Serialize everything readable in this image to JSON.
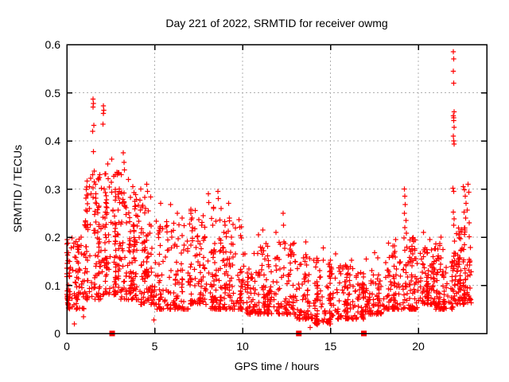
{
  "title": "Day 221 of 2022, SRMTID for receiver owmg",
  "chart_data": {
    "type": "scatter",
    "title": "Day 221 of 2022, SRMTID for receiver owmg",
    "xlabel": "GPS time / hours",
    "ylabel": "SRMTID / TECUs",
    "xlim": [
      0,
      23.9
    ],
    "ylim": [
      0,
      0.6
    ],
    "xticks": [
      0,
      5,
      10,
      15,
      20
    ],
    "xtick_labels": [
      "0",
      "5",
      "10",
      "15",
      "20"
    ],
    "yticks": [
      0,
      0.1,
      0.2,
      0.3,
      0.4,
      0.5,
      0.6
    ],
    "ytick_labels": [
      "0",
      "0.1",
      "0.2",
      "0.3",
      "0.4",
      "0.5",
      "0.6"
    ],
    "grid": true,
    "legend": "none",
    "marker_color": "#ff0000",
    "grid_color": "#b0b0b0",
    "border_color": "#000000",
    "series": [
      {
        "name": "srmtid-plus-markers",
        "marker": "plus",
        "density_bands": [
          [
            0,
            1,
            95,
            0.05,
            0.2,
            1.8
          ],
          [
            1,
            2,
            110,
            0.07,
            0.34,
            1.5
          ],
          [
            2,
            3,
            125,
            0.08,
            0.34,
            1.5
          ],
          [
            3,
            4,
            115,
            0.07,
            0.3,
            1.6
          ],
          [
            4,
            5,
            95,
            0.06,
            0.29,
            1.8
          ],
          [
            5,
            6,
            70,
            0.05,
            0.24,
            2.0
          ],
          [
            6,
            7,
            70,
            0.05,
            0.23,
            2.0
          ],
          [
            7,
            8,
            85,
            0.06,
            0.26,
            2.0
          ],
          [
            8,
            9,
            90,
            0.05,
            0.27,
            2.0
          ],
          [
            9,
            10,
            80,
            0.05,
            0.24,
            2.1
          ],
          [
            10,
            11,
            70,
            0.04,
            0.17,
            2.0
          ],
          [
            11,
            12,
            80,
            0.04,
            0.19,
            2.0
          ],
          [
            12,
            13,
            72,
            0.04,
            0.19,
            2.1
          ],
          [
            13,
            14,
            70,
            0.03,
            0.17,
            2.1
          ],
          [
            14,
            15,
            88,
            0.02,
            0.16,
            2.0
          ],
          [
            15,
            16,
            78,
            0.03,
            0.15,
            2.0
          ],
          [
            16,
            17,
            72,
            0.03,
            0.14,
            2.0
          ],
          [
            17,
            18,
            76,
            0.04,
            0.16,
            2.0
          ],
          [
            18,
            19,
            78,
            0.05,
            0.19,
            2.0
          ],
          [
            19,
            20,
            82,
            0.05,
            0.2,
            2.0
          ],
          [
            20,
            21,
            88,
            0.06,
            0.18,
            1.9
          ],
          [
            21,
            22,
            88,
            0.05,
            0.19,
            2.0
          ],
          [
            22,
            23,
            115,
            0.06,
            0.22,
            1.6
          ]
        ],
        "feature_points": [
          [
            0.03,
            0.195
          ],
          [
            0.07,
            0.188
          ],
          [
            0.1,
            0.168
          ],
          [
            0.16,
            0.15
          ],
          [
            0.42,
            0.02
          ],
          [
            0.95,
            0.035
          ],
          [
            1.3,
            0.305
          ],
          [
            1.36,
            0.322
          ],
          [
            1.46,
            0.33
          ],
          [
            1.48,
            0.42
          ],
          [
            1.49,
            0.47
          ],
          [
            1.5,
            0.487
          ],
          [
            1.51,
            0.378
          ],
          [
            1.52,
            0.478
          ],
          [
            1.53,
            0.432
          ],
          [
            1.55,
            0.315
          ],
          [
            2.06,
            0.435
          ],
          [
            2.08,
            0.473
          ],
          [
            2.09,
            0.457
          ],
          [
            2.11,
            0.464
          ],
          [
            2.13,
            0.3
          ],
          [
            2.32,
            0.352
          ],
          [
            2.55,
            0.362
          ],
          [
            2.75,
            0.33
          ],
          [
            3.1,
            0.33
          ],
          [
            3.22,
            0.375
          ],
          [
            3.25,
            0.355
          ],
          [
            3.28,
            0.34
          ],
          [
            3.5,
            0.32
          ],
          [
            3.75,
            0.305
          ],
          [
            4.2,
            0.3
          ],
          [
            4.55,
            0.31
          ],
          [
            4.6,
            0.295
          ],
          [
            4.95,
            0.028
          ],
          [
            5.35,
            0.27
          ],
          [
            5.9,
            0.268
          ],
          [
            6.3,
            0.25
          ],
          [
            6.55,
            0.24
          ],
          [
            7.3,
            0.255
          ],
          [
            8.05,
            0.29
          ],
          [
            8.07,
            0.272
          ],
          [
            8.6,
            0.295
          ],
          [
            8.62,
            0.28
          ],
          [
            9.0,
            0.225
          ],
          [
            9.2,
            0.27
          ],
          [
            9.25,
            0.24
          ],
          [
            10.9,
            0.205
          ],
          [
            11.15,
            0.215
          ],
          [
            11.9,
            0.21
          ],
          [
            12.3,
            0.25
          ],
          [
            12.32,
            0.225
          ],
          [
            13.6,
            0.19
          ],
          [
            13.85,
            0.012
          ],
          [
            14.1,
            0.022
          ],
          [
            14.25,
            0.018
          ],
          [
            14.6,
            0.178
          ],
          [
            15.3,
            0.165
          ],
          [
            16.2,
            0.152
          ],
          [
            17.5,
            0.168
          ],
          [
            18.3,
            0.188
          ],
          [
            18.7,
            0.195
          ],
          [
            19.2,
            0.3
          ],
          [
            19.23,
            0.285
          ],
          [
            19.26,
            0.268
          ],
          [
            19.21,
            0.25
          ],
          [
            19.3,
            0.235
          ],
          [
            19.24,
            0.22
          ],
          [
            19.33,
            0.208
          ],
          [
            20.3,
            0.21
          ],
          [
            20.65,
            0.195
          ],
          [
            21.3,
            0.2
          ],
          [
            21.97,
            0.302
          ],
          [
            22.0,
            0.585
          ],
          [
            22.02,
            0.57
          ],
          [
            22.0,
            0.545
          ],
          [
            22.01,
            0.52
          ],
          [
            22.03,
            0.46
          ],
          [
            22.0,
            0.452
          ],
          [
            22.02,
            0.448
          ],
          [
            22.01,
            0.442
          ],
          [
            22.04,
            0.428
          ],
          [
            22.0,
            0.41
          ],
          [
            22.02,
            0.4
          ],
          [
            22.03,
            0.393
          ],
          [
            22.02,
            0.295
          ],
          [
            22.0,
            0.252
          ],
          [
            22.04,
            0.238
          ],
          [
            22.01,
            0.225
          ],
          [
            22.55,
            0.305
          ],
          [
            22.62,
            0.298
          ],
          [
            22.68,
            0.285
          ],
          [
            22.72,
            0.27
          ],
          [
            22.6,
            0.252
          ],
          [
            22.78,
            0.256
          ],
          [
            22.82,
            0.31
          ],
          [
            22.87,
            0.293
          ],
          [
            22.7,
            0.24
          ],
          [
            22.9,
            0.23
          ]
        ]
      },
      {
        "name": "flag-square-markers",
        "marker": "filled-square",
        "points": [
          [
            2.58,
            0
          ],
          [
            13.2,
            0
          ],
          [
            16.9,
            0
          ]
        ]
      }
    ]
  }
}
